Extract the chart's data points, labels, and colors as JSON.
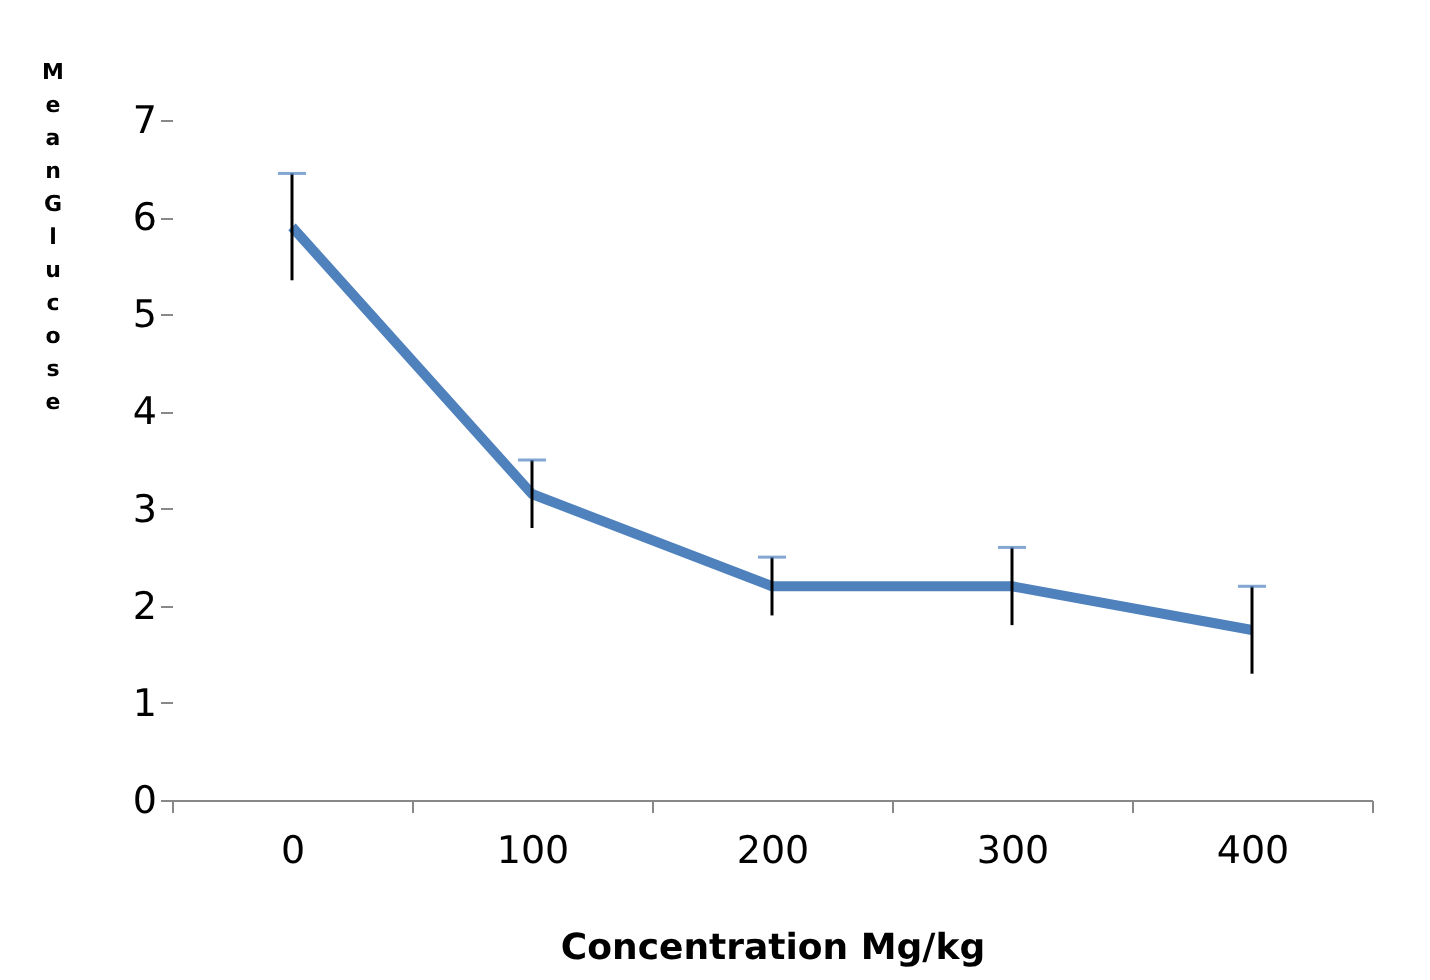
{
  "chart_data": {
    "type": "line",
    "xlabel": "Concentration Mg/kg",
    "ylabel": "Mean Glucose",
    "categories": [
      "0",
      "100",
      "200",
      "300",
      "400"
    ],
    "series": [
      {
        "color": "#4f81bd",
        "values": [
          5.9,
          3.15,
          2.2,
          2.2,
          1.75
        ],
        "errors": [
          0.55,
          0.35,
          0.3,
          0.4,
          0.45
        ]
      }
    ],
    "ylim": [
      0,
      7
    ],
    "yticks": [
      0,
      1,
      2,
      3,
      4,
      5,
      6,
      7
    ],
    "grid": false,
    "marker": "none",
    "line_style": "solid"
  }
}
